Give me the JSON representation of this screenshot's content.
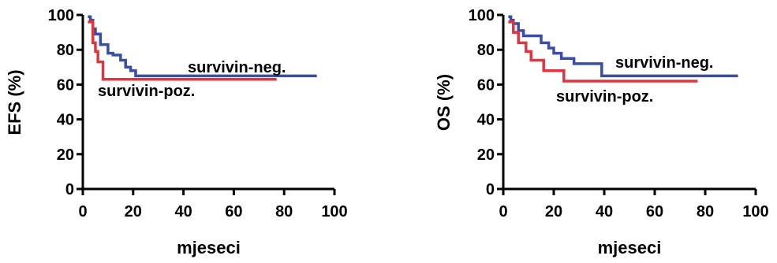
{
  "chart_data": [
    {
      "type": "line",
      "step": true,
      "xlabel": "mjeseci",
      "ylabel": "EFS (%)",
      "xlim": [
        0,
        100
      ],
      "ylim": [
        0,
        100
      ],
      "xticks": [
        "0",
        "20",
        "40",
        "60",
        "80",
        "100"
      ],
      "yticks": [
        "0",
        "20",
        "40",
        "60",
        "80",
        "100"
      ],
      "grid": false,
      "series": [
        {
          "name": "survivin-neg.",
          "color": "#3a4fa3",
          "x": [
            2,
            3,
            4,
            5,
            7,
            10,
            12,
            15,
            17,
            19,
            21,
            93
          ],
          "y": [
            99,
            97,
            92,
            89,
            83,
            78,
            77,
            74,
            70,
            68,
            65,
            65
          ]
        },
        {
          "name": "survivin-poz.",
          "color": "#e0353e",
          "x": [
            2,
            4,
            5,
            6,
            8,
            77
          ],
          "y": [
            96,
            84,
            79,
            73,
            63,
            63
          ]
        }
      ]
    },
    {
      "type": "line",
      "step": true,
      "xlabel": "mjeseci",
      "ylabel": "OS (%)",
      "xlim": [
        0,
        100
      ],
      "ylim": [
        0,
        100
      ],
      "xticks": [
        "0",
        "20",
        "40",
        "60",
        "80",
        "100"
      ],
      "yticks": [
        "0",
        "20",
        "40",
        "60",
        "80",
        "100"
      ],
      "grid": false,
      "series": [
        {
          "name": "survivin-neg.",
          "color": "#3a4fa3",
          "x": [
            2,
            3,
            4,
            6,
            8,
            15,
            18,
            20,
            23,
            28,
            39,
            93
          ],
          "y": [
            99,
            97,
            95,
            91,
            88,
            84,
            81,
            78,
            75,
            72,
            65,
            65
          ]
        },
        {
          "name": "survivin-poz.",
          "color": "#e0353e",
          "x": [
            2,
            4,
            6,
            9,
            11,
            16,
            24,
            77
          ],
          "y": [
            96,
            90,
            84,
            79,
            74,
            68,
            62,
            62
          ]
        }
      ]
    }
  ]
}
